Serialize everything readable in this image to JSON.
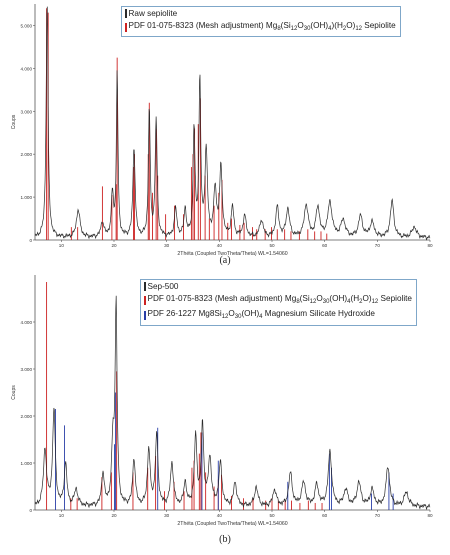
{
  "colors": {
    "raw": "#2a2a2a",
    "pdf_sepiolite": "#cc2222",
    "pdf_hydroxide": "#2a3fa8",
    "legend_border": "#7fa7c9"
  },
  "chart_data": [
    {
      "type": "line",
      "caption": "(a)",
      "xlabel": "2Théta (Coupled TwoTheta/Theta) WL=1.54060",
      "ylabel": "Coups",
      "xlim": [
        5,
        80
      ],
      "ylim": [
        0,
        5500
      ],
      "x_ticks": [
        10,
        20,
        30,
        40,
        50,
        60,
        70,
        80
      ],
      "y_ticks": [
        0,
        1000,
        2000,
        3000,
        4000,
        5000
      ],
      "y_tick_labels": [
        "0",
        "1.000",
        "2.000",
        "3.000",
        "4.000",
        "5.000"
      ],
      "legend": [
        {
          "color": "#2a2a2a",
          "text_parts": [
            "Raw sepiolite"
          ]
        },
        {
          "color": "#cc2222",
          "text_parts": [
            "PDF 01-075-8323 (Mesh adjustment) Mg",
            "8",
            "(Si",
            "12",
            "O",
            "30",
            "(OH)",
            "4",
            ")(H",
            "2",
            "O)",
            "12",
            " Sepiolite"
          ]
        }
      ],
      "series": [
        {
          "name": "Raw sepiolite",
          "baseline": 50,
          "peaks": [
            [
              7.3,
              5500,
              0.22
            ],
            [
              13.2,
              650,
              0.4
            ],
            [
              17.8,
              350,
              0.35
            ],
            [
              19.7,
              1000,
              0.25
            ],
            [
              20.6,
              3850,
              0.18
            ],
            [
              23.8,
              2100,
              0.25
            ],
            [
              26.7,
              3000,
              0.2
            ],
            [
              28.0,
              2750,
              0.22
            ],
            [
              31.7,
              650,
              0.3
            ],
            [
              33.5,
              650,
              0.25
            ],
            [
              35.2,
              2500,
              0.22
            ],
            [
              36.3,
              3650,
              0.2
            ],
            [
              37.5,
              2000,
              0.28
            ],
            [
              39.2,
              1100,
              0.3
            ],
            [
              40.3,
              1600,
              0.3
            ],
            [
              42.5,
              700,
              0.3
            ],
            [
              44.8,
              500,
              0.35
            ],
            [
              48.0,
              400,
              0.4
            ],
            [
              51.0,
              700,
              0.35
            ],
            [
              53.0,
              650,
              0.4
            ],
            [
              56.5,
              750,
              0.45
            ],
            [
              58.7,
              700,
              0.4
            ],
            [
              61.0,
              800,
              0.5
            ],
            [
              63.5,
              400,
              0.5
            ],
            [
              66.8,
              500,
              0.45
            ],
            [
              69.0,
              350,
              0.5
            ],
            [
              72.8,
              850,
              0.4
            ],
            [
              77.0,
              250,
              0.5
            ]
          ]
        }
      ],
      "sticks": [
        {
          "name": "PDF 01-075-8323",
          "color": "#cc2222",
          "peaks": [
            [
              7.2,
              5400
            ],
            [
              7.5,
              5300
            ],
            [
              11.9,
              300
            ],
            [
              13.1,
              300
            ],
            [
              17.8,
              1250
            ],
            [
              19.6,
              1050
            ],
            [
              20.4,
              1300
            ],
            [
              20.6,
              4250
            ],
            [
              23.7,
              1700
            ],
            [
              23.9,
              2000
            ],
            [
              26.5,
              2000
            ],
            [
              26.7,
              3200
            ],
            [
              27.3,
              1100
            ],
            [
              28.0,
              2600
            ],
            [
              28.3,
              1500
            ],
            [
              29.8,
              600
            ],
            [
              31.5,
              800
            ],
            [
              33.2,
              600
            ],
            [
              34.7,
              1700
            ],
            [
              35.0,
              2000
            ],
            [
              35.3,
              2600
            ],
            [
              36.0,
              2700
            ],
            [
              36.4,
              3300
            ],
            [
              37.3,
              1500
            ],
            [
              38.1,
              500
            ],
            [
              39.0,
              800
            ],
            [
              39.9,
              1100
            ],
            [
              40.5,
              1400
            ],
            [
              41.6,
              400
            ],
            [
              42.3,
              500
            ],
            [
              43.9,
              350
            ],
            [
              44.7,
              400
            ],
            [
              46.3,
              300
            ],
            [
              47.1,
              250
            ],
            [
              48.7,
              250
            ],
            [
              49.9,
              300
            ],
            [
              51.0,
              250
            ],
            [
              52.4,
              250
            ],
            [
              53.6,
              200
            ],
            [
              55.2,
              200
            ],
            [
              56.8,
              250
            ],
            [
              58.1,
              200
            ],
            [
              59.3,
              200
            ],
            [
              60.4,
              150
            ]
          ]
        }
      ]
    },
    {
      "type": "line",
      "caption": "(b)",
      "xlabel": "2Théta (Coupled TwoTheta/Theta) WL=1.54060",
      "ylabel": "Coups",
      "xlim": [
        5,
        80
      ],
      "ylim": [
        0,
        5000
      ],
      "x_ticks": [
        10,
        20,
        30,
        40,
        50,
        60,
        70,
        80
      ],
      "y_ticks": [
        0,
        1000,
        2000,
        3000,
        4000
      ],
      "y_tick_labels": [
        "0",
        "1.000",
        "2.000",
        "3.000",
        "4.000"
      ],
      "legend": [
        {
          "color": "#2a2a2a",
          "text_parts": [
            "Sep-500"
          ]
        },
        {
          "color": "#cc2222",
          "text_parts": [
            "PDF 01-075-8323 (Mesh adjustment) Mg",
            "8",
            "(Si",
            "12",
            "O",
            "30",
            "(OH)",
            "4",
            "(H",
            "2",
            "O)",
            "12",
            " Sepiolite"
          ]
        },
        {
          "color": "#2a3fa8",
          "text_parts": [
            "PDF 26-1227 Mg8Si",
            "12",
            "O",
            "30",
            "(OH)",
            "4",
            " Magnesium Silicate Hydroxide"
          ]
        }
      ],
      "series": [
        {
          "name": "Sep-500",
          "baseline": 70,
          "peaks": [
            [
              6.9,
              1200,
              0.35
            ],
            [
              8.6,
              2050,
              0.3
            ],
            [
              10.8,
              900,
              0.3
            ],
            [
              12.8,
              350,
              0.4
            ],
            [
              17.9,
              700,
              0.3
            ],
            [
              19.8,
              1300,
              0.3
            ],
            [
              20.4,
              4250,
              0.22
            ],
            [
              23.8,
              1000,
              0.3
            ],
            [
              26.6,
              1200,
              0.3
            ],
            [
              28.1,
              1500,
              0.3
            ],
            [
              31.0,
              900,
              0.35
            ],
            [
              33.5,
              500,
              0.3
            ],
            [
              35.5,
              1450,
              0.3
            ],
            [
              36.8,
              1700,
              0.28
            ],
            [
              38.2,
              1000,
              0.35
            ],
            [
              40.2,
              900,
              0.35
            ],
            [
              43.0,
              500,
              0.35
            ],
            [
              47.0,
              400,
              0.4
            ],
            [
              50.5,
              350,
              0.4
            ],
            [
              53.5,
              700,
              0.4
            ],
            [
              56.0,
              500,
              0.45
            ],
            [
              58.5,
              450,
              0.4
            ],
            [
              61.0,
              1150,
              0.4
            ],
            [
              64.0,
              350,
              0.45
            ],
            [
              66.5,
              500,
              0.45
            ],
            [
              69.0,
              350,
              0.45
            ],
            [
              72.0,
              850,
              0.4
            ],
            [
              75.5,
              300,
              0.5
            ]
          ]
        }
      ],
      "sticks": [
        {
          "name": "PDF 01-075-8323",
          "color": "#cc2222",
          "peaks": [
            [
              7.2,
              4850
            ],
            [
              11.8,
              250
            ],
            [
              13.0,
              250
            ],
            [
              17.7,
              700
            ],
            [
              19.5,
              800
            ],
            [
              20.5,
              2950
            ],
            [
              23.6,
              800
            ],
            [
              26.4,
              900
            ],
            [
              27.9,
              1150
            ],
            [
              29.6,
              400
            ],
            [
              31.4,
              600
            ],
            [
              33.3,
              400
            ],
            [
              34.8,
              900
            ],
            [
              35.2,
              1050
            ],
            [
              36.2,
              1200
            ],
            [
              36.5,
              1650
            ],
            [
              37.4,
              800
            ],
            [
              39.0,
              500
            ],
            [
              39.8,
              650
            ],
            [
              40.4,
              750
            ],
            [
              42.3,
              300
            ],
            [
              44.6,
              250
            ],
            [
              46.4,
              250
            ],
            [
              48.8,
              200
            ],
            [
              50.0,
              250
            ],
            [
              51.2,
              200
            ],
            [
              52.5,
              200
            ],
            [
              53.7,
              200
            ],
            [
              55.3,
              150
            ],
            [
              56.9,
              200
            ],
            [
              58.2,
              150
            ],
            [
              59.5,
              150
            ]
          ]
        },
        {
          "name": "PDF 26-1227",
          "color": "#2a3fa8",
          "peaks": [
            [
              8.9,
              2150
            ],
            [
              10.6,
              1800
            ],
            [
              20.1,
              1400
            ],
            [
              20.3,
              2500
            ],
            [
              28.3,
              1750
            ],
            [
              36.7,
              1650
            ],
            [
              39.8,
              1050
            ],
            [
              53.0,
              600
            ],
            [
              60.9,
              1200
            ],
            [
              61.3,
              900
            ],
            [
              68.9,
              350
            ],
            [
              72.2,
              800
            ],
            [
              73.0,
              350
            ]
          ]
        }
      ]
    }
  ]
}
